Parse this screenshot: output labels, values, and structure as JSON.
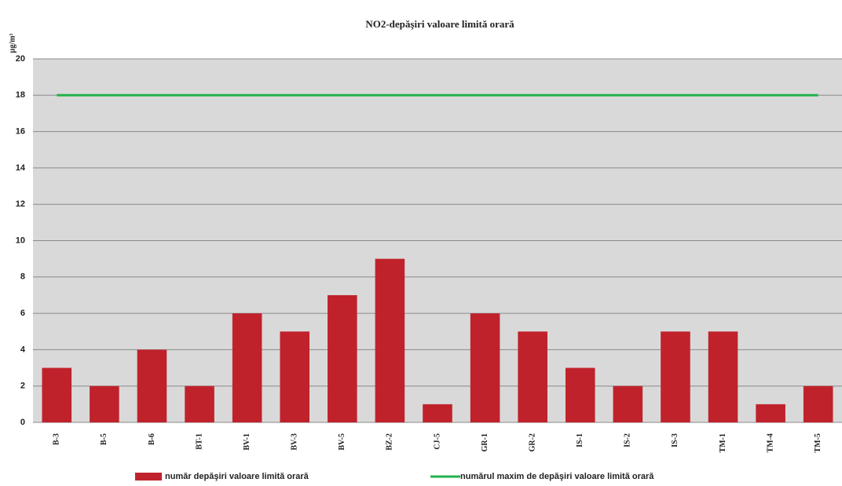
{
  "chart_data": {
    "type": "bar",
    "title": "NO2-depăşiri valoare limită orară",
    "y_label": "µg/m³",
    "categories": [
      "B-3",
      "B-5",
      "B-6",
      "BT-1",
      "BV-1",
      "BV-3",
      "BV-5",
      "BZ-2",
      "CJ-5",
      "GR-1",
      "GR-2",
      "IS-1",
      "IS-2",
      "IS-3",
      "TM-1",
      "TM-4",
      "TM-5"
    ],
    "series": [
      {
        "name": "număr depăşiri valoare limită orară",
        "type": "bar",
        "color": "#c0222b",
        "values": [
          3,
          2,
          4,
          2,
          6,
          5,
          7,
          9,
          1,
          6,
          5,
          3,
          2,
          5,
          5,
          1,
          2
        ]
      },
      {
        "name": "numărul maxim de depăşiri valoare limită orară",
        "type": "line",
        "color": "#22b24c",
        "values": [
          18,
          18,
          18,
          18,
          18,
          18,
          18,
          18,
          18,
          18,
          18,
          18,
          18,
          18,
          18,
          18,
          18
        ]
      }
    ],
    "ylim": [
      0,
      20
    ],
    "yticks": [
      0,
      2,
      4,
      6,
      8,
      10,
      12,
      14,
      16,
      18,
      20
    ],
    "grid": true,
    "legend": "bottom"
  }
}
